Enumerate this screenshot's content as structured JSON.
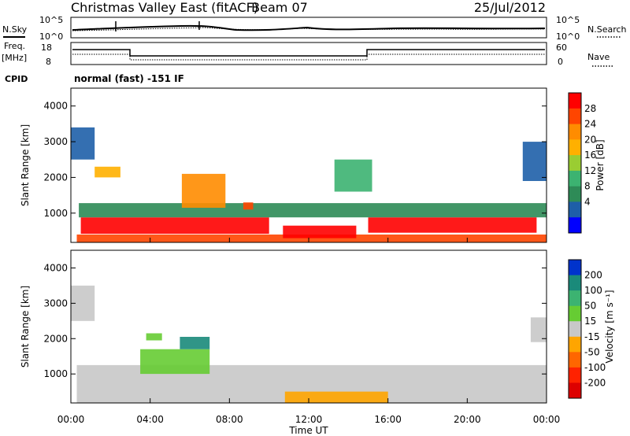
{
  "header": {
    "site": "Christmas Valley East (fitACF)",
    "beam": "Beam 07",
    "date": "25/Jul/2012"
  },
  "top_panels": {
    "nsky_label": "N.Sky",
    "nsky_ticks": [
      "10^5",
      "10^0"
    ],
    "nsearch_label": "N.Search",
    "nsearch_ticks": [
      "10^5",
      "10^0"
    ],
    "freq_label_1": "Freq.",
    "freq_label_2": "[MHz]",
    "freq_ticks": [
      "18",
      "8"
    ],
    "nave_label": "Nave",
    "nave_ticks": [
      "60",
      "0"
    ],
    "cpid_label": "CPID",
    "cpid_value": "normal (fast) -151 IF"
  },
  "colorbars": {
    "power": {
      "label": "Power [dB]",
      "ticks": [
        "28",
        "24",
        "20",
        "16",
        "12",
        "8",
        "4"
      ],
      "colors": [
        "#ff0000",
        "#ff4500",
        "#ff8c00",
        "#ffb000",
        "#9acd32",
        "#3cb371",
        "#2e8b57",
        "#1e5fa8",
        "#0000ff"
      ]
    },
    "velocity": {
      "label": "Velocity [m s⁻¹]",
      "ticks": [
        "200",
        "100",
        "50",
        "15",
        "-15",
        "-50",
        "-100",
        "-200"
      ],
      "colors": [
        "#0033cc",
        "#1a8a7a",
        "#3cb371",
        "#66cc33",
        "#c8c8c8",
        "#ffa500",
        "#ff6600",
        "#ff2200",
        "#dd0000"
      ]
    }
  },
  "chart_data": [
    {
      "type": "heatmap",
      "name": "power",
      "ylabel": "Slant Range [km]",
      "xlabel": "Time UT",
      "x_ticks": [
        "00:00",
        "04:00",
        "08:00",
        "12:00",
        "16:00",
        "20:00",
        "00:00"
      ],
      "xlim": [
        0,
        24
      ],
      "y_ticks": [
        1000,
        2000,
        3000,
        4000
      ],
      "ylim": [
        180,
        4500
      ],
      "blobs": [
        {
          "x0": 0.3,
          "x1": 24,
          "y0": 180,
          "y1": 400,
          "v": 22
        },
        {
          "x0": 0.5,
          "x1": 10,
          "y0": 420,
          "y1": 880,
          "v": 28
        },
        {
          "x0": 10.7,
          "x1": 14.4,
          "y0": 300,
          "y1": 650,
          "v": 26
        },
        {
          "x0": 15.0,
          "x1": 23.5,
          "y0": 450,
          "y1": 880,
          "v": 26
        },
        {
          "x0": 0.4,
          "x1": 24,
          "y0": 880,
          "y1": 1280,
          "v": 8
        },
        {
          "x0": 5.6,
          "x1": 7.8,
          "y0": 1150,
          "y1": 2100,
          "v": 18
        },
        {
          "x0": 1.2,
          "x1": 2.5,
          "y0": 2000,
          "y1": 2300,
          "v": 16
        },
        {
          "x0": 0.0,
          "x1": 1.2,
          "y0": 2500,
          "y1": 3400,
          "v": 6
        },
        {
          "x0": 13.3,
          "x1": 15.2,
          "y0": 1600,
          "y1": 2500,
          "v": 10
        },
        {
          "x0": 8.7,
          "x1": 9.2,
          "y0": 1100,
          "y1": 1300,
          "v": 22
        },
        {
          "x0": 22.8,
          "x1": 24,
          "y0": 1900,
          "y1": 3000,
          "v": 6
        }
      ]
    },
    {
      "type": "heatmap",
      "name": "velocity",
      "ylabel": "Slant Range [km]",
      "xlabel": "Time UT",
      "x_ticks": [
        "00:00",
        "04:00",
        "08:00",
        "12:00",
        "16:00",
        "20:00",
        "00:00"
      ],
      "xlim": [
        0,
        24
      ],
      "y_ticks": [
        1000,
        2000,
        3000,
        4000
      ],
      "ylim": [
        180,
        4500
      ],
      "blobs": [
        {
          "x0": 0.3,
          "x1": 24,
          "y0": 180,
          "y1": 1250,
          "v": 0
        },
        {
          "x0": 3.5,
          "x1": 7.0,
          "y0": 1000,
          "y1": 1700,
          "v": 30
        },
        {
          "x0": 5.5,
          "x1": 7.0,
          "y0": 1700,
          "y1": 2050,
          "v": 120
        },
        {
          "x0": 3.8,
          "x1": 4.6,
          "y0": 1950,
          "y1": 2150,
          "v": 30
        },
        {
          "x0": 10.8,
          "x1": 16.0,
          "y0": 180,
          "y1": 500,
          "v": -40
        },
        {
          "x0": 0.0,
          "x1": 1.2,
          "y0": 2500,
          "y1": 3500,
          "v": 0
        },
        {
          "x0": 23.2,
          "x1": 24,
          "y0": 1900,
          "y1": 2600,
          "v": 0
        }
      ]
    }
  ]
}
